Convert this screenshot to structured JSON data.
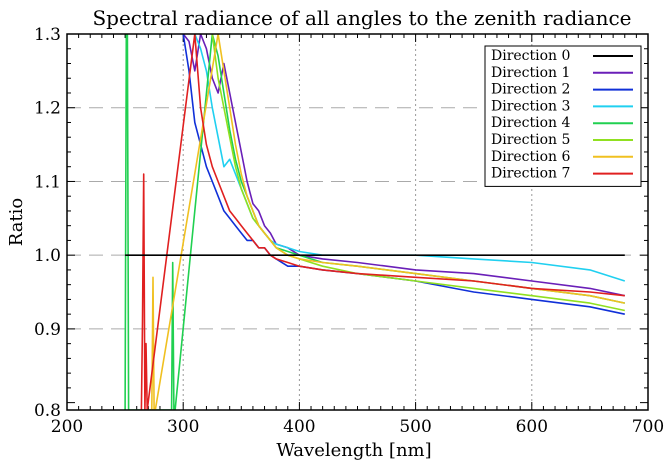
{
  "chart_data": {
    "type": "line",
    "title": "Spectral radiance of all angles to the zenith radiance",
    "xlabel": "Wavelength [nm]",
    "ylabel": "Ratio",
    "xlim": [
      200,
      700
    ],
    "ylim": [
      0.79,
      1.3
    ],
    "x_ticks": [
      200,
      300,
      400,
      500,
      600,
      700
    ],
    "y_ticks": [
      0.9,
      1.0,
      1.1,
      1.2,
      1.3
    ],
    "y_tick_labels": [
      "0.9",
      "1.0",
      "1.1",
      "1.2",
      "1.3"
    ],
    "grid": true,
    "legend": "top-right",
    "series": [
      {
        "name": "Direction 0",
        "color": "#000000",
        "x": [
          250,
          680
        ],
        "y": [
          1.0,
          1.0
        ]
      },
      {
        "name": "Direction 1",
        "color": "#6a1fb8",
        "x": [
          300,
          305,
          310,
          315,
          320,
          325,
          330,
          335,
          340,
          345,
          350,
          355,
          360,
          365,
          370,
          375,
          380,
          390,
          400,
          420,
          450,
          500,
          550,
          600,
          650,
          680
        ],
        "y": [
          1.3,
          1.29,
          1.25,
          1.3,
          1.28,
          1.24,
          1.22,
          1.26,
          1.22,
          1.18,
          1.14,
          1.1,
          1.07,
          1.06,
          1.04,
          1.03,
          1.015,
          1.01,
          1.0,
          0.995,
          0.99,
          0.98,
          0.975,
          0.965,
          0.955,
          0.945
        ]
      },
      {
        "name": "Direction 2",
        "color": "#1030d8",
        "x": [
          300,
          305,
          310,
          315,
          320,
          325,
          330,
          335,
          340,
          345,
          350,
          355,
          360,
          365,
          370,
          375,
          380,
          390,
          400,
          420,
          450,
          500,
          550,
          600,
          650,
          680
        ],
        "y": [
          1.3,
          1.25,
          1.18,
          1.15,
          1.12,
          1.1,
          1.08,
          1.06,
          1.05,
          1.04,
          1.03,
          1.02,
          1.02,
          1.01,
          1.01,
          1.0,
          0.995,
          0.985,
          0.985,
          0.98,
          0.975,
          0.965,
          0.95,
          0.94,
          0.93,
          0.92
        ]
      },
      {
        "name": "Direction 3",
        "color": "#20d0f0",
        "x": [
          310,
          315,
          320,
          325,
          330,
          335,
          340,
          345,
          350,
          355,
          360,
          365,
          370,
          375,
          380,
          390,
          400,
          420,
          450,
          500,
          550,
          600,
          650,
          680
        ],
        "y": [
          1.3,
          1.28,
          1.25,
          1.2,
          1.16,
          1.12,
          1.13,
          1.11,
          1.09,
          1.07,
          1.05,
          1.04,
          1.03,
          1.02,
          1.015,
          1.01,
          1.005,
          1.0,
          1.0,
          1.0,
          0.995,
          0.99,
          0.98,
          0.965
        ]
      },
      {
        "name": "Direction 4",
        "color": "#20d050",
        "x": [
          250,
          251,
          252,
          253,
          254,
          255,
          289,
          290,
          291,
          292,
          293,
          325,
          330,
          335,
          340,
          345,
          350,
          355,
          360,
          365,
          370,
          375,
          380,
          390,
          400,
          420,
          450,
          500,
          550,
          600,
          650,
          680
        ],
        "y": [
          0.79,
          1.3,
          1.3,
          0.79,
          0.79,
          0.79,
          0.79,
          0.79,
          0.99,
          0.79,
          0.79,
          1.3,
          1.27,
          1.22,
          1.17,
          1.13,
          1.1,
          1.08,
          1.06,
          1.04,
          1.03,
          1.02,
          1.01,
          1.005,
          1.0,
          0.99,
          0.985,
          0.975,
          0.965,
          0.955,
          0.945,
          0.935
        ]
      },
      {
        "name": "Direction 5",
        "color": "#90e020",
        "x": [
          325,
          330,
          335,
          340,
          345,
          350,
          355,
          360,
          365,
          370,
          375,
          380,
          390,
          400,
          420,
          450,
          500,
          550,
          600,
          650,
          680
        ],
        "y": [
          1.3,
          1.24,
          1.2,
          1.16,
          1.12,
          1.09,
          1.07,
          1.05,
          1.04,
          1.03,
          1.02,
          1.01,
          1.0,
          0.995,
          0.985,
          0.975,
          0.965,
          0.955,
          0.945,
          0.935,
          0.925
        ]
      },
      {
        "name": "Direction 6",
        "color": "#f0c020",
        "x": [
          272,
          273,
          274,
          275,
          276,
          330,
          335,
          340,
          345,
          350,
          355,
          360,
          365,
          370,
          375,
          380,
          390,
          400,
          420,
          450,
          500,
          550,
          600,
          650,
          680
        ],
        "y": [
          0.79,
          0.79,
          0.97,
          0.79,
          0.79,
          1.3,
          1.25,
          1.2,
          1.15,
          1.11,
          1.08,
          1.06,
          1.04,
          1.03,
          1.02,
          1.01,
          1.0,
          0.995,
          0.99,
          0.985,
          0.975,
          0.965,
          0.955,
          0.945,
          0.935
        ]
      },
      {
        "name": "Direction 7",
        "color": "#e02020",
        "x": [
          264,
          265,
          266,
          267,
          268,
          269,
          310,
          315,
          320,
          325,
          330,
          335,
          340,
          345,
          350,
          355,
          360,
          365,
          370,
          375,
          380,
          390,
          400,
          420,
          450,
          500,
          550,
          600,
          650,
          680
        ],
        "y": [
          0.79,
          0.91,
          1.11,
          0.79,
          0.88,
          0.79,
          1.3,
          1.2,
          1.15,
          1.12,
          1.1,
          1.08,
          1.06,
          1.05,
          1.04,
          1.03,
          1.02,
          1.01,
          1.01,
          1.0,
          0.995,
          0.99,
          0.985,
          0.98,
          0.975,
          0.97,
          0.965,
          0.955,
          0.95,
          0.945
        ]
      }
    ]
  }
}
